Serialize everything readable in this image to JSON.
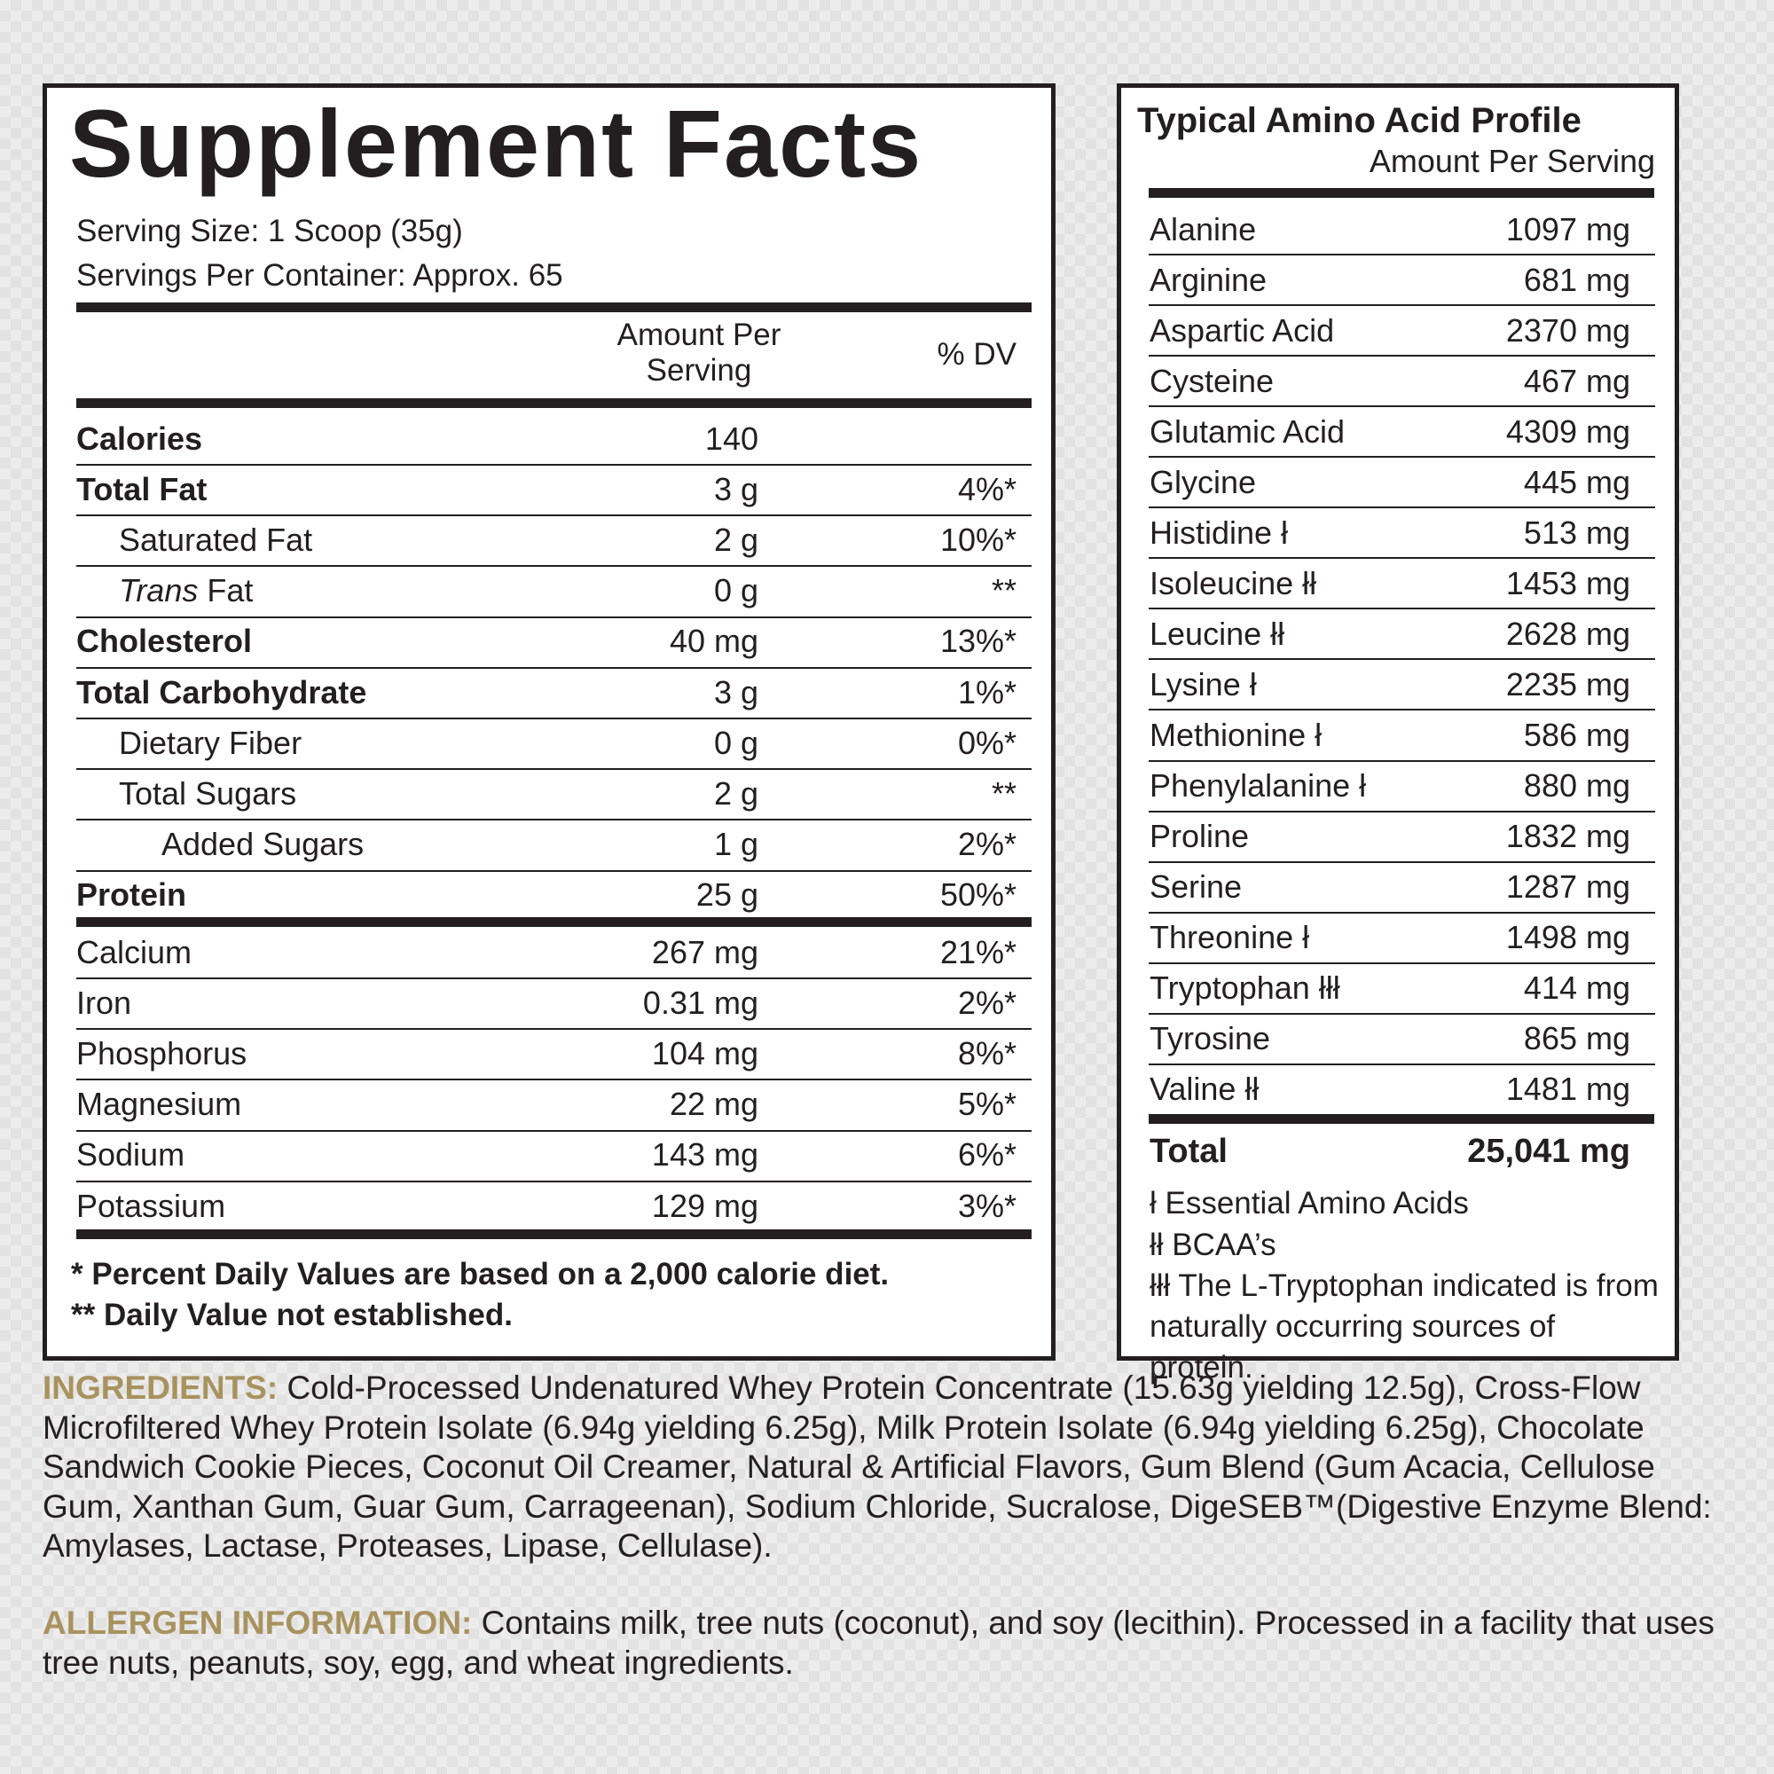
{
  "supplement_facts": {
    "title": "Supplement Facts",
    "serving_size": "Serving Size: 1 Scoop (35g)",
    "servings_per_container": "Servings Per Container: Approx. 65",
    "columns": [
      "Amount Per Serving",
      "% DV"
    ],
    "rows": [
      [
        "Calories",
        "140",
        null
      ],
      [
        "Total Fat",
        "3 g",
        "4%*"
      ],
      [
        "Saturated Fat",
        "2 g",
        "10%*"
      ],
      [
        [
          "Trans",
          "Fat"
        ],
        "0 g",
        "**"
      ],
      [
        "Cholesterol",
        "40 mg",
        "13%*"
      ],
      [
        "Total Carbohydrate",
        "3 g",
        "1%*"
      ],
      [
        "Dietary Fiber",
        "0 g",
        "0%*"
      ],
      [
        "Total Sugars",
        "2 g",
        "**"
      ],
      [
        "Added Sugars",
        "1 g",
        "2%*"
      ],
      [
        "Protein",
        "25 g",
        "50%*"
      ],
      [
        "Calcium",
        "267 mg",
        "21%*"
      ],
      [
        "Iron",
        "0.31 mg",
        "2%*"
      ],
      [
        "Phosphorus",
        "104 mg",
        "8%*"
      ],
      [
        "Magnesium",
        "22 mg",
        "5%*"
      ],
      [
        "Sodium",
        "143 mg",
        "6%*"
      ],
      [
        "Potassium",
        "129 mg",
        "3%*"
      ]
    ],
    "footnotes": [
      "* Percent Daily Values are based on a 2,000 calorie diet.",
      "** Daily Value not established."
    ]
  },
  "amino_acid_profile": {
    "title": "Typical Amino Acid Profile",
    "subtitle": "Amount Per Serving",
    "rows": [
      [
        "Alanine",
        "1097 mg"
      ],
      [
        "Arginine",
        "681 mg"
      ],
      [
        "Aspartic Acid",
        "2370 mg"
      ],
      [
        "Cysteine",
        "467 mg"
      ],
      [
        "Glutamic Acid",
        "4309 mg"
      ],
      [
        "Glycine",
        "445 mg"
      ],
      [
        "Histidine ł",
        "513 mg"
      ],
      [
        "Isoleucine łł",
        "1453 mg"
      ],
      [
        "Leucine łł",
        "2628 mg"
      ],
      [
        "Lysine ł",
        "2235 mg"
      ],
      [
        "Methionine ł",
        "586 mg"
      ],
      [
        "Phenylalanine ł",
        "880 mg"
      ],
      [
        "Proline",
        "1832 mg"
      ],
      [
        "Serine",
        "1287 mg"
      ],
      [
        "Threonine ł",
        "1498 mg"
      ],
      [
        "Tryptophan łłł",
        "414 mg"
      ],
      [
        "Tyrosine",
        "865 mg"
      ],
      [
        "Valine łł",
        "1481 mg"
      ]
    ],
    "total": [
      "Total",
      "25,041 mg"
    ],
    "footnotes": [
      "ł Essential Amino Acids",
      "łł BCAA’s",
      "łłł The L-Tryptophan indicated is from naturally occurring sources of protein."
    ]
  },
  "ingredients": {
    "label": "INGREDIENTS:",
    "text": "Cold-Processed Undenatured Whey Protein Concentrate (15.63g yielding 12.5g), Cross-Flow Microfiltered Whey Protein Isolate (6.94g yielding 6.25g), Milk Protein Isolate (6.94g yielding 6.25g), Chocolate Sandwich Cookie Pieces, Coconut Oil Creamer, Natural & Artificial Flavors, Gum Blend (Gum Acacia, Cellulose Gum, Xanthan Gum, Guar Gum, Carrageenan), Sodium Chloride, Sucralose, DigeSEB™(Digestive Enzyme Blend: Amylases, Lactase, Proteases, Lipase, Cellulase)."
  },
  "allergen": {
    "label": "ALLERGEN INFORMATION:",
    "text": "Contains milk, tree nuts (coconut), and soy (lecithin). Processed in a facility that uses tree nuts, peanuts, soy, egg, and wheat ingredients."
  }
}
